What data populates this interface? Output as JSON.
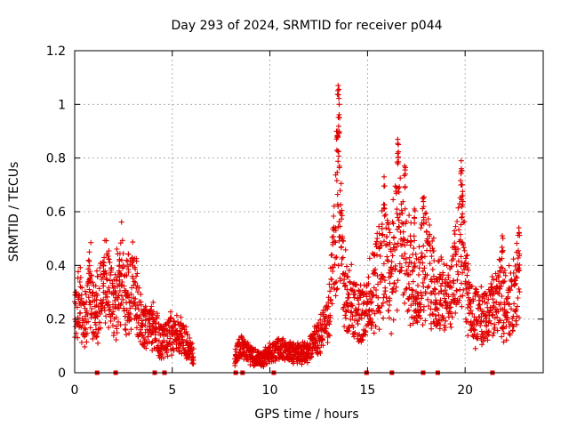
{
  "chart_data": {
    "type": "scatter",
    "title": "Day 293 of 2024, SRMTID for receiver p044",
    "xlabel": "GPS time / hours",
    "ylabel": "SRMTID / TECUs",
    "xlim": [
      0,
      24
    ],
    "ylim": [
      0,
      1.2
    ],
    "xticks": [
      0,
      5,
      10,
      15,
      20
    ],
    "yticks": [
      0,
      0.2,
      0.4,
      0.6,
      0.8,
      1.0,
      1.2
    ],
    "xtick_labels": [
      "0",
      "5",
      "10",
      "15",
      "20"
    ],
    "ytick_labels": [
      "0",
      "0.2",
      "0.4",
      "0.6",
      "0.8",
      "1",
      "1.2"
    ],
    "grid": true,
    "marker": "+",
    "series_color": "#e00000",
    "series": [
      {
        "name": "SRMTID",
        "envelope": [
          {
            "x": 0.0,
            "y": 0.2
          },
          {
            "x": 0.3,
            "y": 0.28
          },
          {
            "x": 0.6,
            "y": 0.18
          },
          {
            "x": 0.8,
            "y": 0.38
          },
          {
            "x": 1.0,
            "y": 0.2
          },
          {
            "x": 1.5,
            "y": 0.34
          },
          {
            "x": 2.0,
            "y": 0.25
          },
          {
            "x": 2.4,
            "y": 0.36
          },
          {
            "x": 2.8,
            "y": 0.28
          },
          {
            "x": 3.0,
            "y": 0.32
          },
          {
            "x": 3.5,
            "y": 0.16
          },
          {
            "x": 4.0,
            "y": 0.17
          },
          {
            "x": 4.5,
            "y": 0.12
          },
          {
            "x": 5.0,
            "y": 0.15
          },
          {
            "x": 5.5,
            "y": 0.13
          },
          {
            "x": 6.0,
            "y": 0.08
          },
          {
            "x": 8.2,
            "y": 0.06
          },
          {
            "x": 8.5,
            "y": 0.1
          },
          {
            "x": 9.0,
            "y": 0.07
          },
          {
            "x": 9.5,
            "y": 0.05
          },
          {
            "x": 10.0,
            "y": 0.07
          },
          {
            "x": 10.5,
            "y": 0.09
          },
          {
            "x": 11.0,
            "y": 0.08
          },
          {
            "x": 11.5,
            "y": 0.07
          },
          {
            "x": 12.0,
            "y": 0.08
          },
          {
            "x": 12.5,
            "y": 0.13
          },
          {
            "x": 13.0,
            "y": 0.2
          },
          {
            "x": 13.3,
            "y": 0.45
          },
          {
            "x": 13.5,
            "y": 0.6
          },
          {
            "x": 13.8,
            "y": 0.3
          },
          {
            "x": 14.2,
            "y": 0.25
          },
          {
            "x": 14.8,
            "y": 0.2
          },
          {
            "x": 15.2,
            "y": 0.3
          },
          {
            "x": 15.8,
            "y": 0.45
          },
          {
            "x": 16.2,
            "y": 0.35
          },
          {
            "x": 16.6,
            "y": 0.55
          },
          {
            "x": 17.0,
            "y": 0.4
          },
          {
            "x": 17.5,
            "y": 0.3
          },
          {
            "x": 18.0,
            "y": 0.45
          },
          {
            "x": 18.5,
            "y": 0.3
          },
          {
            "x": 19.2,
            "y": 0.28
          },
          {
            "x": 19.8,
            "y": 0.5
          },
          {
            "x": 20.2,
            "y": 0.25
          },
          {
            "x": 20.8,
            "y": 0.2
          },
          {
            "x": 21.3,
            "y": 0.22
          },
          {
            "x": 21.8,
            "y": 0.3
          },
          {
            "x": 22.3,
            "y": 0.25
          },
          {
            "x": 22.8,
            "y": 0.35
          }
        ],
        "peaks": [
          {
            "x": 0.75,
            "y": 0.45
          },
          {
            "x": 1.5,
            "y": 0.41
          },
          {
            "x": 2.3,
            "y": 0.4
          },
          {
            "x": 13.5,
            "y": 1.07
          },
          {
            "x": 13.55,
            "y": 1.0
          },
          {
            "x": 13.45,
            "y": 0.9
          },
          {
            "x": 15.85,
            "y": 0.73
          },
          {
            "x": 16.55,
            "y": 0.87
          },
          {
            "x": 16.9,
            "y": 0.77
          },
          {
            "x": 17.4,
            "y": 0.61
          },
          {
            "x": 17.85,
            "y": 0.65
          },
          {
            "x": 19.8,
            "y": 0.79
          },
          {
            "x": 19.85,
            "y": 0.7
          },
          {
            "x": 21.9,
            "y": 0.51
          },
          {
            "x": 22.75,
            "y": 0.54
          }
        ],
        "zeros": [
          1.15,
          2.1,
          4.1,
          4.6,
          8.25,
          8.6,
          10.2,
          14.95,
          16.25,
          17.85,
          18.6,
          21.4
        ]
      }
    ]
  }
}
